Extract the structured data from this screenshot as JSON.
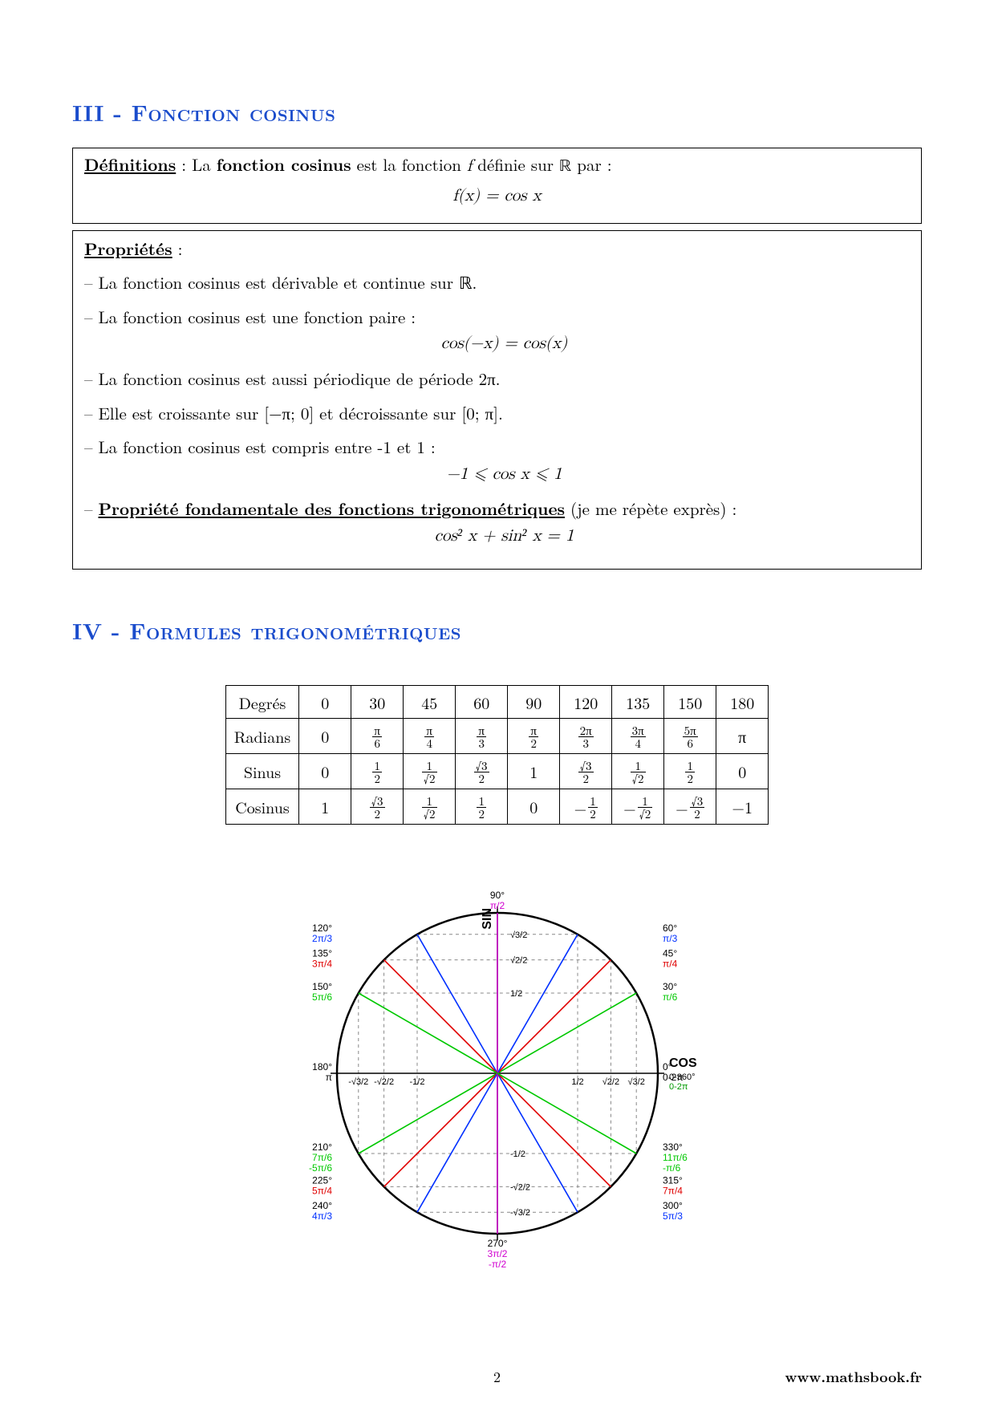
{
  "headings": {
    "h3": "III - Fonction cosinus",
    "h4": "IV - Formules trigonométriques"
  },
  "definition": {
    "label": "Définitions",
    "sep": " : La ",
    "bold": "fonction cosinus",
    "rest1": " est la fonction ",
    "f": "f",
    "rest2": " définie sur ",
    "set": "ℝ",
    "rest3": " par :",
    "equation": "f(x) = cos x"
  },
  "properties": {
    "label": "Propriétés",
    "items": [
      {
        "text": "La fonction cosinus est dérivable et continue sur ℝ."
      },
      {
        "text": "La fonction cosinus est une fonction paire :",
        "eq": "cos(−x) = cos(x)"
      },
      {
        "text": "La fonction cosinus est aussi périodique de période 2π."
      },
      {
        "text": "Elle est croissante sur [−π; 0] et décroissante sur [0; π]."
      },
      {
        "text": "La fonction cosinus est compris entre -1 et 1 :",
        "eq": "−1 ⩽ cos x ⩽ 1"
      },
      {
        "bold": "Propriété fondamentale des fonctions trigonométriques",
        "tail": " (je me répète exprès) :",
        "eq": "cos² x + sin² x = 1"
      }
    ]
  },
  "table": {
    "headers": [
      "Degrés",
      "Radians",
      "Sinus",
      "Cosinus"
    ],
    "degrees": [
      "0",
      "30",
      "45",
      "60",
      "90",
      "120",
      "135",
      "150",
      "180"
    ],
    "radians": [
      "0",
      "π|6",
      "π|4",
      "π|3",
      "π|2",
      "2π|3",
      "3π|4",
      "5π|6",
      "π"
    ],
    "sinus": [
      "0",
      "1|2",
      "1|√2",
      "√3|2",
      "1",
      "√3|2",
      "1|√2",
      "1|2",
      "0"
    ],
    "cosinus": [
      "1",
      "√3|2",
      "1|√2",
      "1|2",
      "0",
      "-1|2",
      "-1|√2",
      "-√3|2",
      "−1"
    ]
  },
  "unit_circle": {
    "type": "diagram",
    "axis_labels": {
      "x": "COS",
      "y": "SIN"
    },
    "radius": 200,
    "background": "#ffffff",
    "circle_color": "#000000",
    "circle_width": 2.5,
    "axis_color": "#000000",
    "grid_dash_color": "#888888",
    "colors": {
      "green": "#00c800",
      "red": "#e00000",
      "blue": "#0030ff",
      "magenta": "#d000d0"
    },
    "angles": [
      {
        "deg": 0,
        "rad": "0-2π",
        "color": "#000000",
        "pos": "r"
      },
      {
        "deg": 30,
        "rad": "π/6",
        "color": "#00c800",
        "pos": "r"
      },
      {
        "deg": 45,
        "rad": "π/4",
        "color": "#e00000",
        "pos": "r"
      },
      {
        "deg": 60,
        "rad": "π/3",
        "color": "#0030ff",
        "pos": "r"
      },
      {
        "deg": 90,
        "rad": "π/2",
        "color": "#d000d0",
        "pos": "t"
      },
      {
        "deg": 120,
        "rad": "2π/3",
        "color": "#0030ff",
        "pos": "l"
      },
      {
        "deg": 135,
        "rad": "3π/4",
        "color": "#e00000",
        "pos": "l"
      },
      {
        "deg": 150,
        "rad": "5π/6",
        "color": "#00c800",
        "pos": "l"
      },
      {
        "deg": 180,
        "rad": "π",
        "color": "#000000",
        "pos": "l"
      },
      {
        "deg": 210,
        "rad": "7π/6",
        "alt": "-5π/6",
        "color": "#00c800",
        "pos": "l"
      },
      {
        "deg": 225,
        "rad": "5π/4",
        "color": "#e00000",
        "pos": "l"
      },
      {
        "deg": 240,
        "rad": "4π/3",
        "color": "#0030ff",
        "pos": "l"
      },
      {
        "deg": 270,
        "rad": "3π/2",
        "alt": "-π/2",
        "color": "#d000d0",
        "pos": "b"
      },
      {
        "deg": 300,
        "rad": "5π/3",
        "color": "#0030ff",
        "pos": "r"
      },
      {
        "deg": 315,
        "rad": "7π/4",
        "color": "#e00000",
        "pos": "r"
      },
      {
        "deg": 330,
        "rad": "11π/6",
        "alt": "-π/6",
        "color": "#00c800",
        "pos": "r"
      }
    ],
    "axis_ticks": {
      "x": [
        {
          "v": 0.5,
          "l": "1/2"
        },
        {
          "v": 0.7071,
          "l": "√2/2"
        },
        {
          "v": 0.866,
          "l": "√3/2"
        },
        {
          "v": -0.5,
          "l": "-1/2"
        },
        {
          "v": -0.7071,
          "l": "-√2/2"
        },
        {
          "v": -0.866,
          "l": "-√3/2"
        }
      ],
      "y": [
        {
          "v": 0.5,
          "l": "1/2"
        },
        {
          "v": 0.7071,
          "l": "√2/2"
        },
        {
          "v": 0.866,
          "l": "√3/2"
        },
        {
          "v": -0.5,
          "l": "-1/2"
        },
        {
          "v": -0.7071,
          "l": "-√2/2"
        },
        {
          "v": -0.866,
          "l": "-√3/2"
        }
      ]
    },
    "label_fontsize": 12,
    "label_fontfamily": "Arial"
  },
  "footer": {
    "page": "2",
    "site": "www.mathsbook.fr"
  }
}
